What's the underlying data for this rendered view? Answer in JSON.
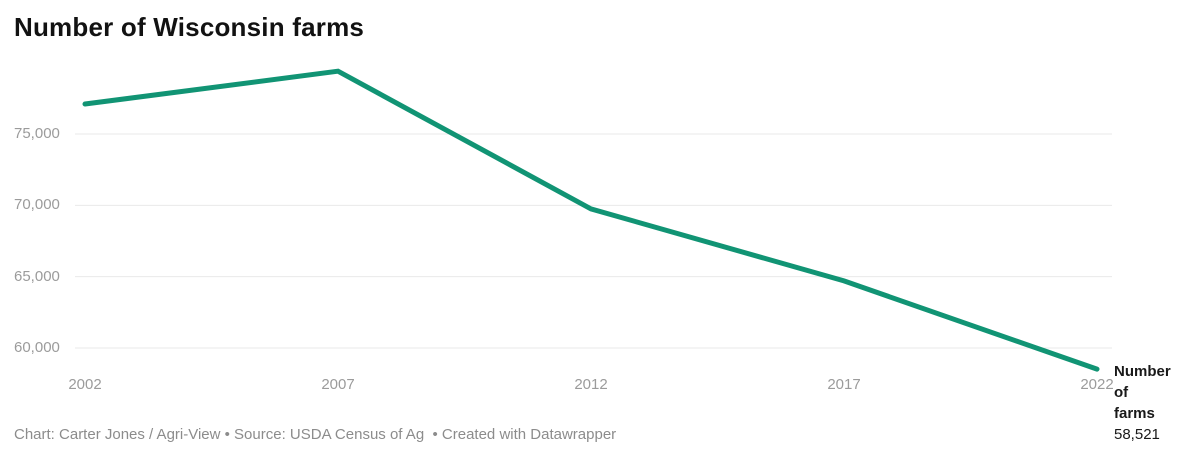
{
  "title": "Number of Wisconsin farms",
  "footer": "Chart: Carter Jones / Agri-View • Source: USDA Census of Ag  • Created with Datawrapper",
  "annotation": {
    "label": "Number of farms",
    "value": "58,521"
  },
  "colors": {
    "line": "#119474",
    "grid": "#e9e9e9",
    "tick_label": "#9b9b9b",
    "footer_text": "#8c8c8c",
    "title_text": "#121212",
    "annotation_text": "#191919"
  },
  "chart_data": {
    "type": "line",
    "title": "Number of Wisconsin farms",
    "series_name": "Number of farms",
    "x": [
      2002,
      2007,
      2012,
      2017,
      2022
    ],
    "values": [
      77100,
      79400,
      69750,
      64700,
      58521
    ],
    "x_tick_labels": [
      "2002",
      "2007",
      "2012",
      "2017",
      "2022"
    ],
    "y_ticks": [
      75000,
      70000,
      65000,
      60000
    ],
    "y_tick_labels": [
      "75,000",
      "70,000",
      "65,000",
      "60,000"
    ],
    "ylim": [
      58000,
      79800
    ],
    "xlabel": "",
    "ylabel": "",
    "grid": "horizontal",
    "legend": "none",
    "end_label_value": "58,521"
  }
}
